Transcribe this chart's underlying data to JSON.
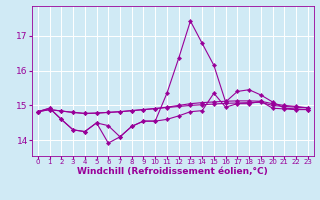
{
  "background_color": "#d0eaf5",
  "grid_color": "#ffffff",
  "line_color": "#990099",
  "marker": "D",
  "markersize": 2.2,
  "xlabel": "Windchill (Refroidissement éolien,°C)",
  "xlabel_fontsize": 6.5,
  "xtick_fontsize": 5.0,
  "ytick_fontsize": 6.5,
  "xlim": [
    -0.5,
    23.5
  ],
  "ylim": [
    13.55,
    17.85
  ],
  "yticks": [
    14,
    15,
    16,
    17
  ],
  "hours": [
    0,
    1,
    2,
    3,
    4,
    5,
    6,
    7,
    8,
    9,
    10,
    11,
    12,
    13,
    14,
    15,
    16,
    17,
    18,
    19,
    20,
    21,
    22,
    23
  ],
  "line_smooth": [
    14.82,
    14.88,
    14.84,
    14.8,
    14.77,
    14.78,
    14.8,
    14.82,
    14.85,
    14.88,
    14.91,
    14.94,
    14.97,
    15.0,
    15.02,
    15.04,
    15.06,
    15.07,
    15.08,
    15.09,
    15.0,
    14.97,
    14.95,
    14.93
  ],
  "line_smooth2": [
    14.82,
    14.88,
    14.84,
    14.8,
    14.77,
    14.78,
    14.8,
    14.82,
    14.85,
    14.88,
    14.91,
    14.95,
    15.0,
    15.05,
    15.08,
    15.1,
    15.12,
    15.13,
    15.13,
    15.12,
    15.05,
    15.0,
    14.97,
    14.93
  ],
  "line_spiky": [
    14.82,
    14.92,
    14.6,
    14.3,
    14.25,
    14.5,
    13.92,
    14.1,
    14.4,
    14.55,
    14.55,
    15.35,
    16.35,
    17.42,
    16.78,
    16.15,
    15.1,
    15.4,
    15.45,
    15.3,
    15.1,
    14.92,
    14.9,
    14.88
  ],
  "line_medium": [
    14.82,
    14.92,
    14.6,
    14.3,
    14.25,
    14.5,
    14.42,
    14.1,
    14.4,
    14.55,
    14.55,
    14.6,
    14.7,
    14.82,
    14.85,
    15.35,
    14.95,
    15.05,
    15.05,
    15.12,
    14.92,
    14.9,
    14.88,
    14.88
  ]
}
